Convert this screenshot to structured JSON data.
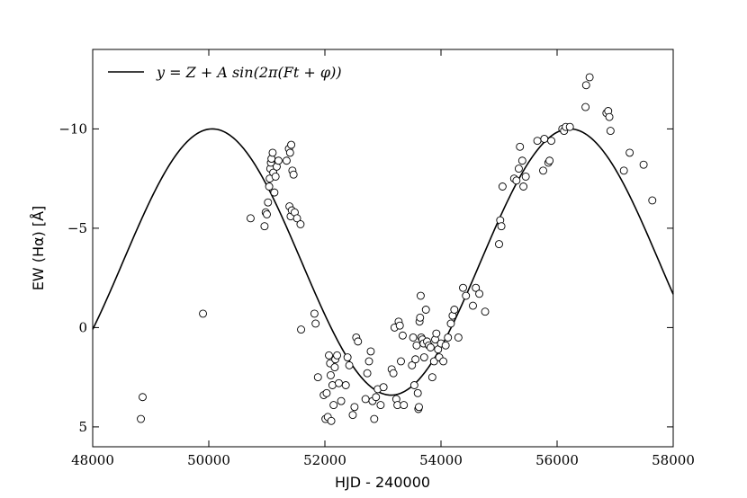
{
  "chart_data": {
    "type": "scatter",
    "xlabel": "HJD - 240000",
    "ylabel": "EW (Hα) [Å]",
    "xlim": [
      48000,
      58000
    ],
    "ylim": [
      6,
      -14
    ],
    "y_axis_inverted": true,
    "grid": false,
    "legend_position": "top-left",
    "xticks": [
      "48000",
      "50000",
      "52000",
      "54000",
      "56000",
      "58000"
    ],
    "yticks": [
      "−10",
      "−5",
      "0",
      "5"
    ],
    "xtick_values": [
      48000,
      50000,
      52000,
      54000,
      56000,
      58000
    ],
    "ytick_values": [
      -10,
      -5,
      0,
      5
    ],
    "series": [
      {
        "name": "y = Z + A sin(2π(Ft + φ))",
        "kind": "line",
        "model": {
          "Z": -3.3,
          "A": 6.7,
          "period_days": 6160,
          "peak_at": 50060
        }
      },
      {
        "name": "",
        "kind": "scatter",
        "marker": "open-circle",
        "points": [
          [
            48830,
            4.6
          ],
          [
            48860,
            3.5
          ],
          [
            49900,
            -0.7
          ],
          [
            50720,
            -5.5
          ],
          [
            50960,
            -5.1
          ],
          [
            50980,
            -5.8
          ],
          [
            51000,
            -5.7
          ],
          [
            51020,
            -6.3
          ],
          [
            51040,
            -7.1
          ],
          [
            51050,
            -7.5
          ],
          [
            51060,
            -8.0
          ],
          [
            51070,
            -8.3
          ],
          [
            51080,
            -8.5
          ],
          [
            51100,
            -8.8
          ],
          [
            51110,
            -7.8
          ],
          [
            51130,
            -6.8
          ],
          [
            51150,
            -7.6
          ],
          [
            51170,
            -8.1
          ],
          [
            51200,
            -8.4
          ],
          [
            51340,
            -8.4
          ],
          [
            51380,
            -9.0
          ],
          [
            51400,
            -8.8
          ],
          [
            51420,
            -9.2
          ],
          [
            51440,
            -7.9
          ],
          [
            51460,
            -7.7
          ],
          [
            51390,
            -6.1
          ],
          [
            51410,
            -5.6
          ],
          [
            51430,
            -5.9
          ],
          [
            51480,
            -5.8
          ],
          [
            51520,
            -5.5
          ],
          [
            51580,
            -5.2
          ],
          [
            51590,
            0.1
          ],
          [
            51820,
            -0.7
          ],
          [
            51840,
            -0.2
          ],
          [
            51880,
            2.5
          ],
          [
            51980,
            3.4
          ],
          [
            52010,
            4.6
          ],
          [
            52030,
            3.3
          ],
          [
            52050,
            4.5
          ],
          [
            52070,
            1.4
          ],
          [
            52090,
            1.8
          ],
          [
            52100,
            2.4
          ],
          [
            52110,
            4.7
          ],
          [
            52130,
            2.9
          ],
          [
            52150,
            3.9
          ],
          [
            52170,
            2.0
          ],
          [
            52180,
            1.6
          ],
          [
            52210,
            1.4
          ],
          [
            52240,
            2.8
          ],
          [
            52280,
            3.7
          ],
          [
            52360,
            2.9
          ],
          [
            52390,
            1.5
          ],
          [
            52420,
            1.9
          ],
          [
            52480,
            4.4
          ],
          [
            52510,
            4.0
          ],
          [
            52540,
            0.5
          ],
          [
            52570,
            0.7
          ],
          [
            52700,
            3.6
          ],
          [
            52730,
            2.3
          ],
          [
            52760,
            1.7
          ],
          [
            52790,
            1.2
          ],
          [
            52820,
            3.7
          ],
          [
            52850,
            4.6
          ],
          [
            52880,
            3.5
          ],
          [
            52910,
            3.1
          ],
          [
            52960,
            3.9
          ],
          [
            53010,
            3.0
          ],
          [
            53150,
            2.1
          ],
          [
            53180,
            2.3
          ],
          [
            53200,
            0.0
          ],
          [
            53230,
            3.6
          ],
          [
            53250,
            3.9
          ],
          [
            53270,
            -0.3
          ],
          [
            53290,
            -0.1
          ],
          [
            53310,
            1.7
          ],
          [
            53340,
            0.4
          ],
          [
            53360,
            3.9
          ],
          [
            53500,
            1.9
          ],
          [
            53520,
            0.5
          ],
          [
            53540,
            2.9
          ],
          [
            53560,
            1.6
          ],
          [
            53580,
            0.9
          ],
          [
            53600,
            3.3
          ],
          [
            53610,
            4.1
          ],
          [
            53620,
            4.0
          ],
          [
            53630,
            -0.3
          ],
          [
            53640,
            -0.5
          ],
          [
            53650,
            -1.6
          ],
          [
            53660,
            0.5
          ],
          [
            53680,
            0.6
          ],
          [
            53700,
            0.8
          ],
          [
            53710,
            1.5
          ],
          [
            53740,
            -0.9
          ],
          [
            53760,
            0.7
          ],
          [
            53790,
            0.9
          ],
          [
            53820,
            1.0
          ],
          [
            53850,
            2.5
          ],
          [
            53880,
            1.7
          ],
          [
            53900,
            0.6
          ],
          [
            53920,
            0.3
          ],
          [
            53950,
            1.1
          ],
          [
            53970,
            1.5
          ],
          [
            54000,
            0.8
          ],
          [
            54040,
            1.7
          ],
          [
            54080,
            0.9
          ],
          [
            54120,
            0.5
          ],
          [
            54170,
            -0.2
          ],
          [
            54200,
            -0.6
          ],
          [
            54230,
            -0.9
          ],
          [
            54300,
            0.5
          ],
          [
            54380,
            -2.0
          ],
          [
            54430,
            -1.6
          ],
          [
            54550,
            -1.1
          ],
          [
            54600,
            -2.0
          ],
          [
            54660,
            -1.7
          ],
          [
            54760,
            -0.8
          ],
          [
            55000,
            -4.2
          ],
          [
            55020,
            -5.4
          ],
          [
            55040,
            -5.1
          ],
          [
            55060,
            -7.1
          ],
          [
            55260,
            -7.5
          ],
          [
            55300,
            -7.4
          ],
          [
            55340,
            -8.0
          ],
          [
            55360,
            -9.1
          ],
          [
            55400,
            -8.4
          ],
          [
            55420,
            -7.1
          ],
          [
            55460,
            -7.6
          ],
          [
            55660,
            -9.4
          ],
          [
            55760,
            -7.9
          ],
          [
            55780,
            -9.5
          ],
          [
            55850,
            -8.3
          ],
          [
            55870,
            -8.4
          ],
          [
            55900,
            -9.4
          ],
          [
            56090,
            -10.0
          ],
          [
            56120,
            -9.9
          ],
          [
            56150,
            -10.1
          ],
          [
            56220,
            -10.1
          ],
          [
            56490,
            -11.1
          ],
          [
            56500,
            -12.2
          ],
          [
            56560,
            -12.6
          ],
          [
            56850,
            -10.8
          ],
          [
            56880,
            -10.9
          ],
          [
            56900,
            -10.6
          ],
          [
            56920,
            -9.9
          ],
          [
            57150,
            -7.9
          ],
          [
            57250,
            -8.8
          ],
          [
            57490,
            -8.2
          ],
          [
            57640,
            -6.4
          ]
        ]
      }
    ]
  }
}
